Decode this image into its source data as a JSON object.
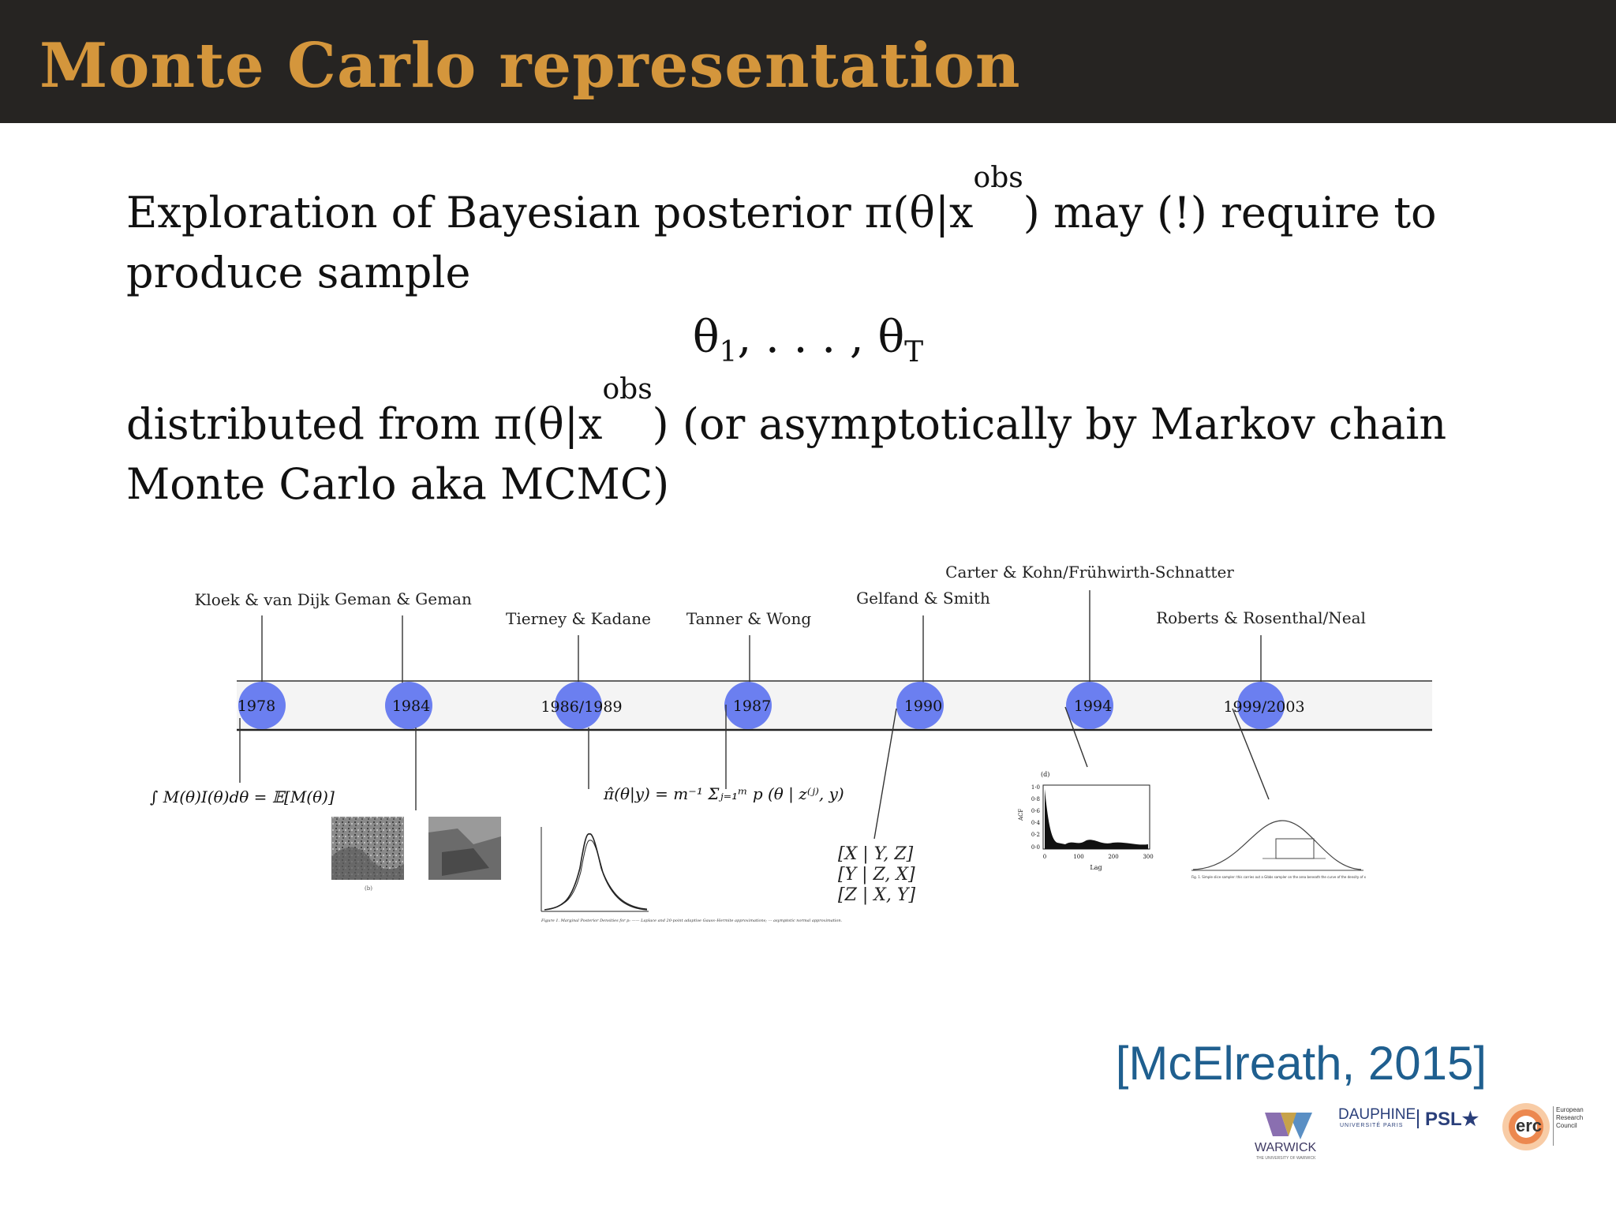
{
  "header": {
    "title": "Monte Carlo representation"
  },
  "body": {
    "para1_a": "Exploration of Bayesian posterior π(θ|x",
    "para1_sup": "obs",
    "para1_b": ") may (!) require to produce sample",
    "math_theta1": "θ",
    "math_sub1": "1",
    "math_mid": ", . . . , θ",
    "math_subT": "T",
    "para2_a": "distributed from π(θ|x",
    "para2_sup": "obs",
    "para2_b": ") (or asymptotically by Markov chain Monte Carlo aka MCMC)"
  },
  "timeline": {
    "events": [
      {
        "year": "1978",
        "label": "Kloek & van Dijk"
      },
      {
        "year": "1984",
        "label": "Geman & Geman"
      },
      {
        "year": "1986/1989",
        "label": "Tierney & Kadane"
      },
      {
        "year": "1987",
        "label": "Tanner & Wong"
      },
      {
        "year": "1990",
        "label": "Gelfand & Smith"
      },
      {
        "year": "1994",
        "label": "Carter & Kohn/Frühwirth-Schnatter"
      },
      {
        "year": "1999/2003",
        "label": "Roberts & Rosenthal/Neal"
      }
    ],
    "formula_importance": "∫ M(θ)I(θ)dθ = 𝔼[M(θ)]",
    "formula_data_aug": "π̂(θ|y) = m⁻¹ Σⱼ₌₁ᵐ p (θ | z⁽ʲ⁾, y)",
    "conditionals": [
      "[X | Y, Z]",
      "[Y | Z, X]",
      "[Z | X, Y]"
    ],
    "acf_plot": {
      "panel": "(d)",
      "ylabel": "ACF",
      "xlabel": "Lag",
      "yticks": [
        "1·0",
        "0·8",
        "0·6",
        "0·4",
        "0·2",
        "0·0"
      ],
      "xticks": [
        "0",
        "100",
        "200",
        "300"
      ]
    },
    "thumb_caption_1984": "(b)",
    "thumb_caption_1986": "Figure 1. Marginal Posterior Densities for p: —— Laplace and 20-point adaptive Gauss–Hermite approximations; ··· asymptotic normal approximation.",
    "thumb_caption_1999": "Fig. 1. Simple slice sampler: this carries out a Gibbs sampler on the area beneath the curve of the density of x"
  },
  "citation": "[McElreath, 2015]",
  "logos": {
    "warwick": "WARWICK",
    "warwick_sub": "THE UNIVERSITY OF WARWICK",
    "dauphine": "DAUPHINE",
    "dauphine_sub": "UNIVERSITÉ PARIS",
    "psl": "PSL★",
    "erc": "erc",
    "erc_text": [
      "European",
      "Research",
      "Council"
    ]
  },
  "colors": {
    "title": "#d4963c",
    "header_bg": "#262422",
    "node": "#6b7ff0",
    "citation": "#1f5f8f"
  }
}
